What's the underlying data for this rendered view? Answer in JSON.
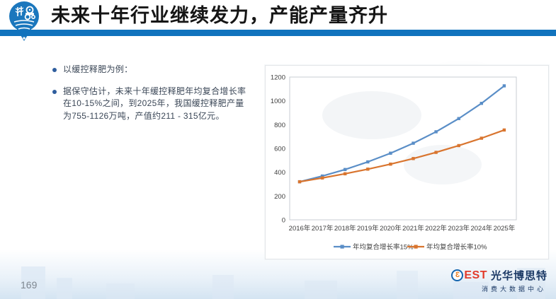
{
  "header": {
    "title": "未来十年行业继续发力，产能产量齐升"
  },
  "bullets": [
    "以缓控释肥为例：",
    "据保守估计，未来十年缓控释肥年均复合增长率在10-15%之间，到2025年，我国缓控释肥产量为755-1126万吨，产值约211 - 315亿元。"
  ],
  "chart_data": {
    "type": "line",
    "categories": [
      "2016年",
      "2017年",
      "2018年",
      "2019年",
      "2020年",
      "2021年",
      "2022年",
      "2023年",
      "2024年",
      "2025年"
    ],
    "series": [
      {
        "name": "年均复合增长率15%",
        "color": "#5a8ec7",
        "values": [
          320,
          368,
          423,
          487,
          560,
          644,
          740,
          851,
          979,
          1126
        ]
      },
      {
        "name": "年均复合增长率10%",
        "color": "#d9752f",
        "values": [
          320,
          352,
          387,
          426,
          468,
          515,
          567,
          624,
          686,
          755
        ]
      }
    ],
    "title": "",
    "xlabel": "",
    "ylabel": "",
    "ylim": [
      0,
      1200
    ],
    "yticks": [
      0,
      200,
      400,
      600,
      800,
      1000,
      1200
    ],
    "grid": false,
    "legend_position": "bottom",
    "marker": "square"
  },
  "footer": {
    "page_number": "169",
    "logo": {
      "circle_glyph": "3",
      "wordmark": "EST",
      "company_name": "光华博思特",
      "subtitle": "消费大数据中心"
    }
  },
  "colors": {
    "accent_bar": "#1173bd",
    "title_text": "#151515",
    "body_text": "#3b4757",
    "series_15_blue": "#5a8ec7",
    "series_10_orange": "#d9752f",
    "pin_logo_blue": "#1b77bd",
    "logo_red": "#e23a2a",
    "logo_navy": "#1c3a66"
  }
}
